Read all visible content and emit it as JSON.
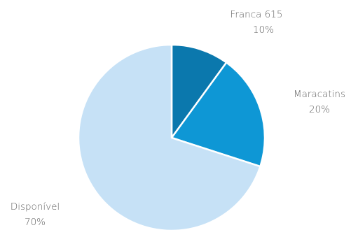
{
  "chart_data": {
    "type": "pie",
    "slices": [
      {
        "label": "Franca 615",
        "value": 10,
        "value_label": "10%",
        "color": "#0b78ad"
      },
      {
        "label": "Maracatins",
        "value": 20,
        "value_label": "20%",
        "color": "#0e97d5"
      },
      {
        "label": "Disponível",
        "value": 70,
        "value_label": "70%",
        "color": "#c6e1f6"
      }
    ],
    "start_angle": "top, clockwise",
    "legend": "none (labels outside slices)"
  }
}
